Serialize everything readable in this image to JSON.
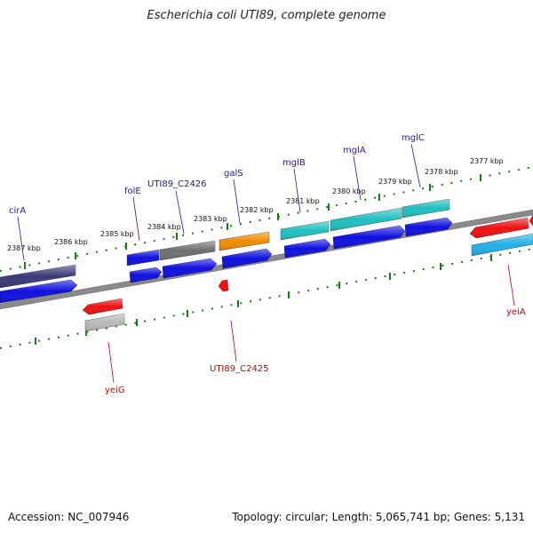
{
  "title": "Escherichia coli UTI89, complete genome",
  "footer": {
    "accession": "Accession: NC_007946",
    "topology": "Topology: circular; Length: 5,065,741 bp; Genes: 5,131"
  },
  "colors": {
    "backbone": "#808080",
    "ticks": "#1a7a1a",
    "forward_label": "#1a1aa8",
    "reverse_label": "#cc0000",
    "cds_blue": "#1010e0",
    "teal": "#20c0c0",
    "navy": "#3a3a7a",
    "gray": "#707070",
    "orange": "#f08c00",
    "red": "#ee1111",
    "light_gray": "#b8b8b8",
    "sky": "#20b0e8"
  },
  "kbp_labels": [
    "2377 kbp",
    "2378 kbp",
    "2379 kbp",
    "2380 kbp",
    "2381 kbp",
    "2382 kbp",
    "2383 kbp",
    "2384 kbp",
    "2385 kbp",
    "2386 kbp",
    "2387 kbp"
  ],
  "forward_genes": [
    "cirA",
    "folE",
    "UTI89_C2426",
    "galS",
    "mglB",
    "mglA",
    "mglC"
  ],
  "reverse_genes": [
    "yeiG",
    "UTI89_C2425",
    "yeiA"
  ]
}
